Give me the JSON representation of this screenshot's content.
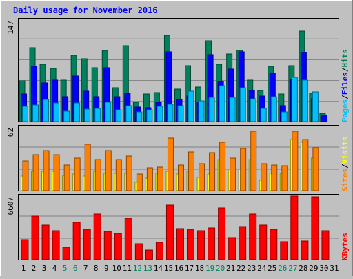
{
  "title": "Daily usage for November 2016",
  "colors": {
    "hits": "#00805c",
    "files": "#0000ff",
    "pages": "#00c0ff",
    "visits": "#ffff00",
    "sites": "#ff8000",
    "kbytes": "#ff0000",
    "title": "#0000ff",
    "weekend_day": "#00805c",
    "weekday_day": "#000000"
  },
  "chart_data": [
    {
      "type": "bar",
      "panel": "hits-files-pages",
      "y_label_max": "147",
      "ylim": [
        0,
        147
      ],
      "legend": [
        "Pages",
        "Files",
        "Hits"
      ],
      "legend_separator": "/",
      "categories": [
        "1",
        "2",
        "3",
        "4",
        "5",
        "6",
        "7",
        "8",
        "9",
        "10",
        "11",
        "12",
        "13",
        "14",
        "15",
        "16",
        "17",
        "18",
        "19",
        "20",
        "21",
        "22",
        "23",
        "24",
        "25",
        "26",
        "27",
        "28",
        "29",
        "30",
        "31"
      ],
      "weekend_days": [
        "5",
        "6",
        "12",
        "13",
        "19",
        "20",
        "26",
        "27"
      ],
      "series": [
        {
          "name": "Hits",
          "values": [
            59,
            107,
            83,
            77,
            60,
            96,
            91,
            78,
            103,
            49,
            110,
            28,
            40,
            42,
            125,
            47,
            81,
            50,
            117,
            83,
            98,
            103,
            60,
            45,
            80,
            40,
            81,
            131,
            41,
            12,
            0
          ]
        },
        {
          "name": "Files",
          "values": [
            40,
            80,
            56,
            60,
            36,
            66,
            44,
            36,
            78,
            36,
            41,
            21,
            20,
            28,
            101,
            32,
            37,
            28,
            97,
            58,
            76,
            101,
            45,
            37,
            70,
            23,
            61,
            100,
            33,
            9,
            0
          ]
        },
        {
          "name": "Pages",
          "values": [
            22,
            24,
            32,
            27,
            15,
            27,
            18,
            19,
            28,
            17,
            23,
            14,
            17,
            22,
            25,
            23,
            44,
            30,
            35,
            52,
            35,
            49,
            33,
            19,
            36,
            14,
            64,
            60,
            43,
            0,
            0
          ]
        }
      ]
    },
    {
      "type": "bar",
      "panel": "visits-sites",
      "y_label_max": "62",
      "ylim": [
        0,
        62
      ],
      "legend": [
        "Sites",
        "Visits"
      ],
      "legend_separator": "/",
      "series": [
        {
          "name": "Visits",
          "values": [
            14,
            19,
            19,
            19,
            15,
            16,
            14,
            19,
            17,
            17,
            17,
            8,
            12,
            17,
            19,
            16,
            19,
            13,
            16,
            30,
            21,
            21,
            30,
            10,
            17,
            17,
            50,
            47,
            32,
            0,
            0
          ]
        },
        {
          "name": "Sites",
          "values": [
            29,
            35,
            39,
            35,
            25,
            32,
            45,
            30,
            39,
            30,
            34,
            16,
            22,
            23,
            51,
            25,
            38,
            26,
            37,
            47,
            32,
            41,
            58,
            26,
            25,
            24,
            58,
            50,
            42,
            0,
            0
          ]
        }
      ]
    },
    {
      "type": "bar",
      "panel": "kbytes",
      "y_label_max": "6607",
      "ylim": [
        0,
        6607
      ],
      "legend": [
        "KBytes"
      ],
      "series": [
        {
          "name": "KBytes",
          "values": [
            2047,
            4499,
            3577,
            3019,
            1303,
            3864,
            3139,
            4721,
            2978,
            2715,
            4305,
            1639,
            1005,
            1823,
            5666,
            3209,
            3131,
            3019,
            3321,
            5380,
            2327,
            3466,
            4721,
            3577,
            3131,
            1860,
            6607,
            1934,
            6551,
            3019,
            0
          ]
        }
      ]
    }
  ]
}
